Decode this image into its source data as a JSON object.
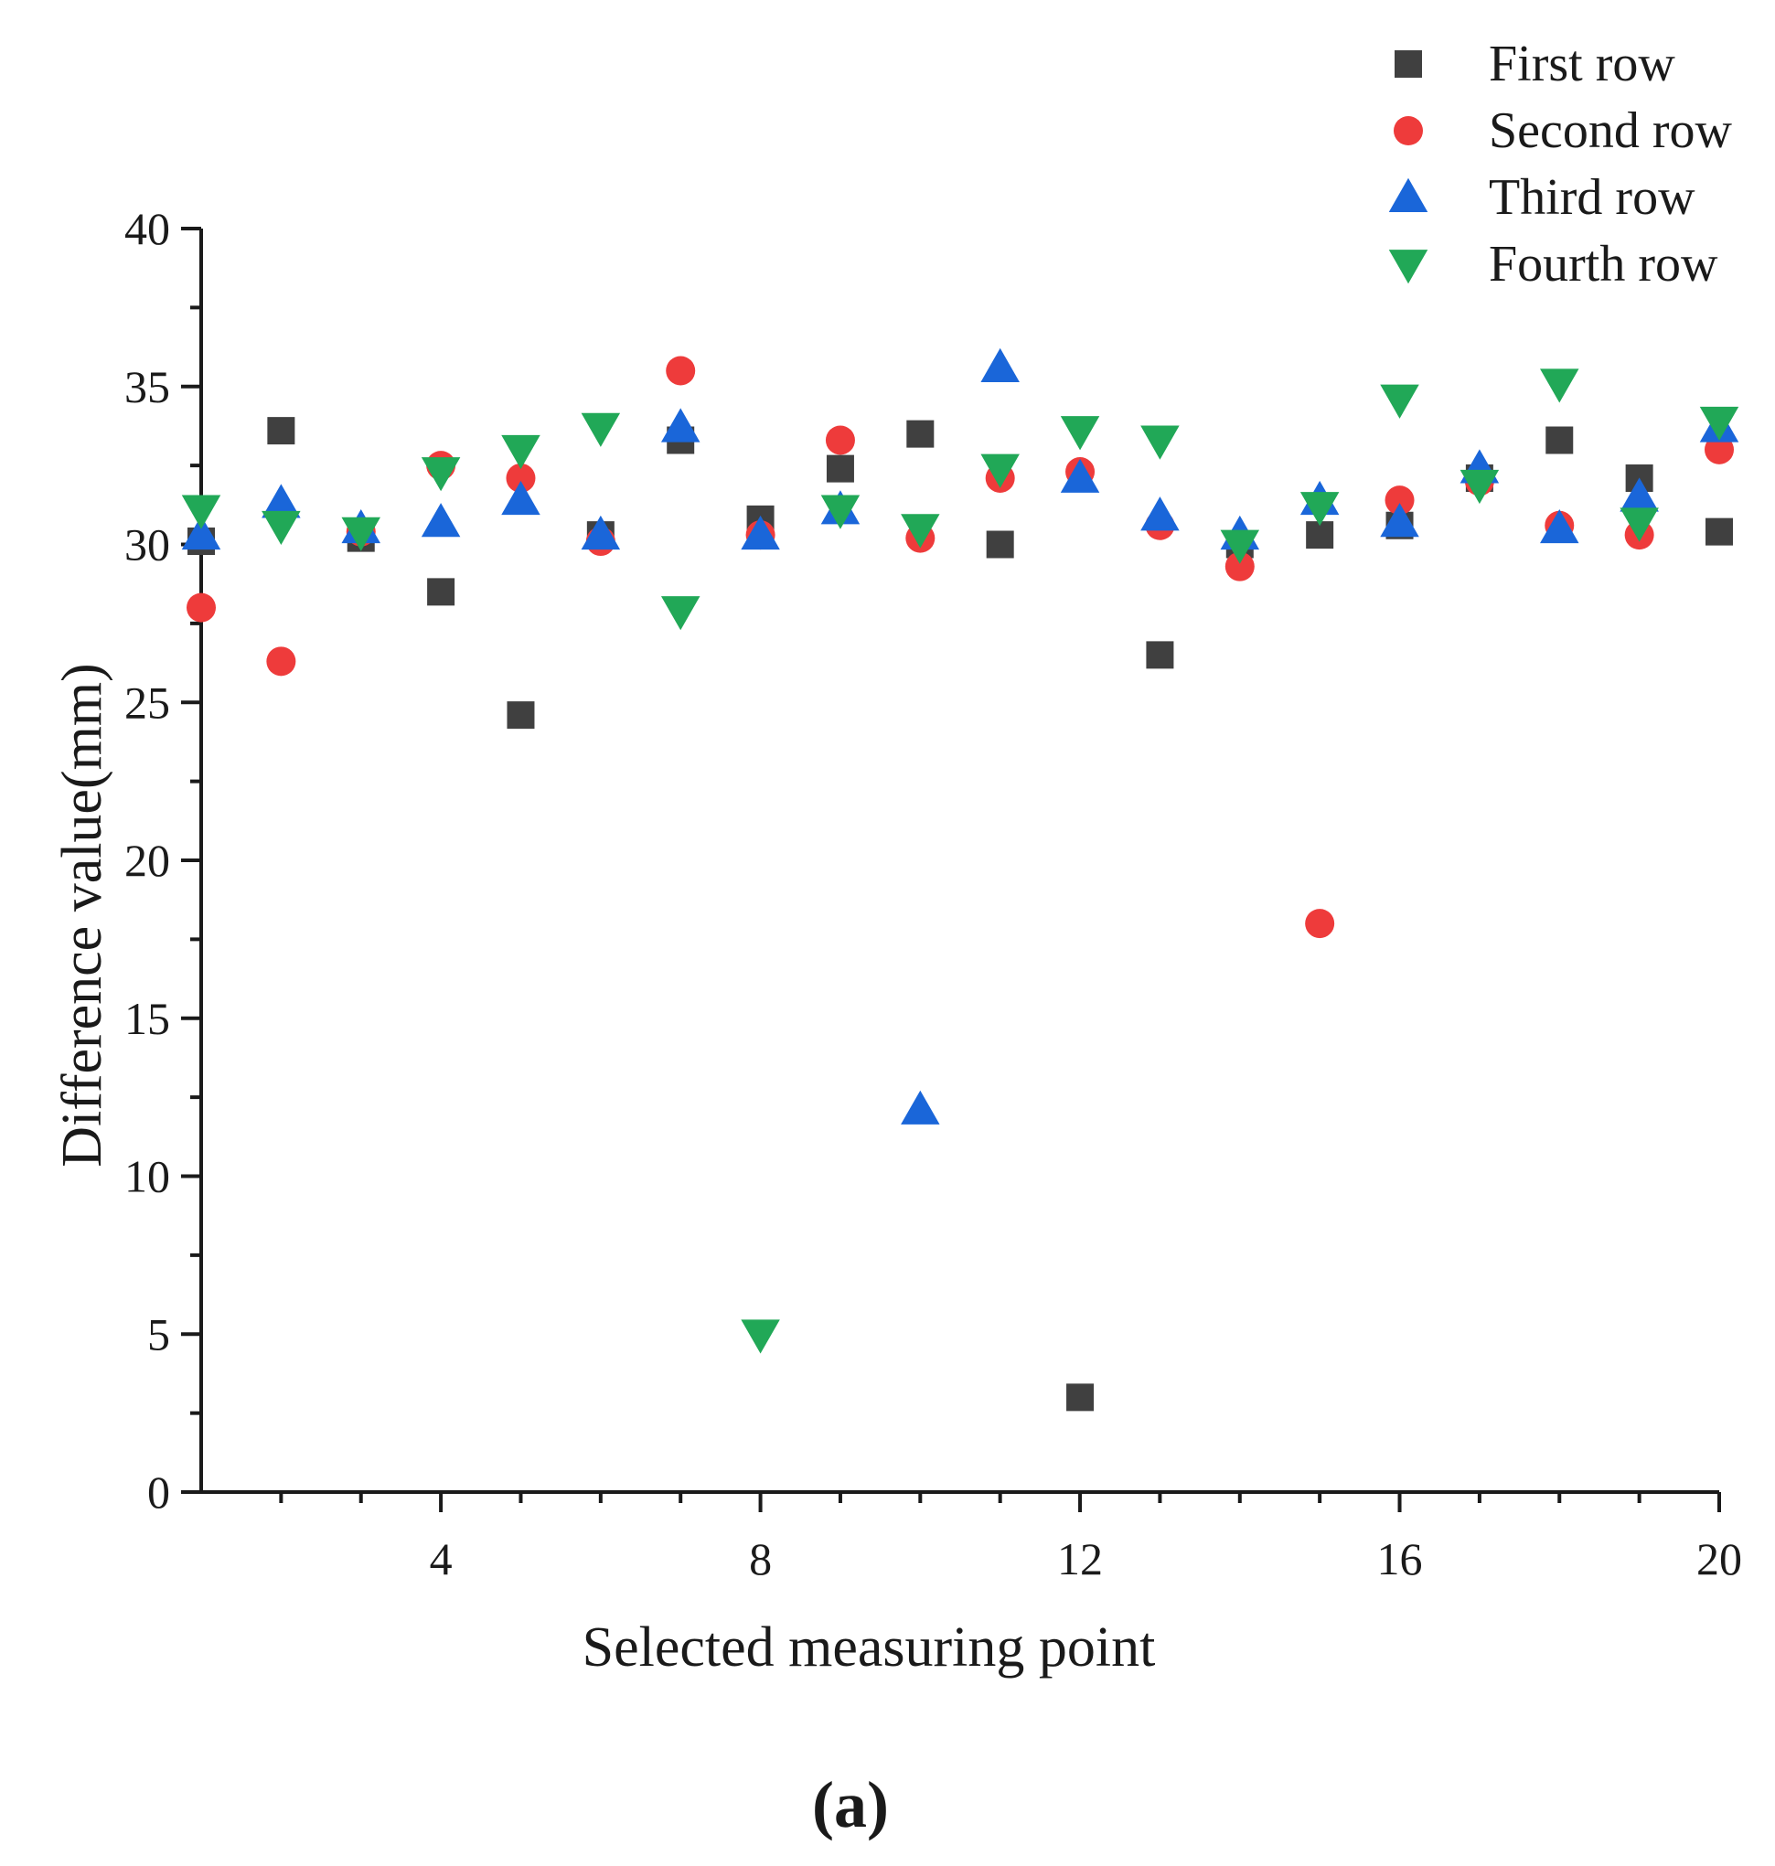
{
  "chart_data": {
    "type": "scatter",
    "title": "",
    "xlabel": "Selected measuring point",
    "ylabel": "Difference value(mm)",
    "xlim": [
      1,
      20
    ],
    "ylim": [
      0,
      40
    ],
    "x_ticks": [
      4,
      8,
      12,
      16,
      20
    ],
    "x_minor_ticks": [
      2,
      3,
      5,
      6,
      7,
      9,
      10,
      11,
      13,
      14,
      15,
      17,
      18,
      19
    ],
    "y_ticks": [
      0,
      5,
      10,
      15,
      20,
      25,
      30,
      35,
      40
    ],
    "legend_position": "top-right",
    "caption": "(a)",
    "x": [
      1,
      2,
      3,
      4,
      5,
      6,
      7,
      8,
      9,
      10,
      11,
      12,
      13,
      14,
      15,
      16,
      17,
      18,
      19,
      20
    ],
    "series": [
      {
        "name": "First row",
        "marker": "square",
        "color": "#404040",
        "values": [
          30.1,
          33.6,
          30.2,
          28.5,
          24.6,
          30.3,
          33.3,
          30.8,
          32.4,
          33.5,
          30.0,
          3.0,
          26.5,
          30.0,
          30.3,
          30.6,
          32.1,
          33.3,
          32.1,
          30.4
        ]
      },
      {
        "name": "Second row",
        "marker": "circle",
        "color": "#ee3b3b",
        "values": [
          28.0,
          26.3,
          30.4,
          32.5,
          32.1,
          30.1,
          35.5,
          30.3,
          33.3,
          30.2,
          32.1,
          32.3,
          30.6,
          29.3,
          18.0,
          31.4,
          32.0,
          30.6,
          30.3,
          33.0
        ]
      },
      {
        "name": "Third row",
        "marker": "triangle-up",
        "color": "#1a66d9",
        "values": [
          30.3,
          31.3,
          30.5,
          30.7,
          31.4,
          30.3,
          33.7,
          30.3,
          31.1,
          12.1,
          35.6,
          32.1,
          30.9,
          30.3,
          31.4,
          30.7,
          32.4,
          30.5,
          31.5,
          33.7
        ]
      },
      {
        "name": "Fourth row",
        "marker": "triangle-down",
        "color": "#21a857",
        "values": [
          31.1,
          30.6,
          30.4,
          32.3,
          33.0,
          33.7,
          27.9,
          5.0,
          31.1,
          30.5,
          32.4,
          33.6,
          33.3,
          30.0,
          31.2,
          34.6,
          31.9,
          35.1,
          30.7,
          33.9
        ]
      }
    ]
  }
}
